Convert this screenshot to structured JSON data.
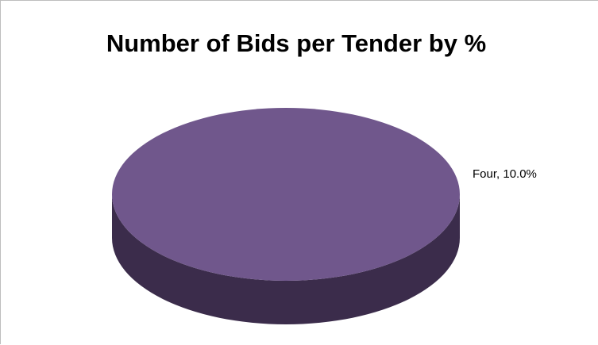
{
  "chart_data": {
    "type": "pie",
    "title": "Number of Bids per Tender by %",
    "slices": [
      {
        "label": "Four",
        "value": 10.0,
        "display": "Four, 10.0%"
      }
    ],
    "colors": {
      "top": "#70578C",
      "side": "#3B2C4B",
      "frame": "#BDBDBD",
      "background": "#FFFFFF"
    },
    "style": "3d",
    "legend": "none"
  }
}
